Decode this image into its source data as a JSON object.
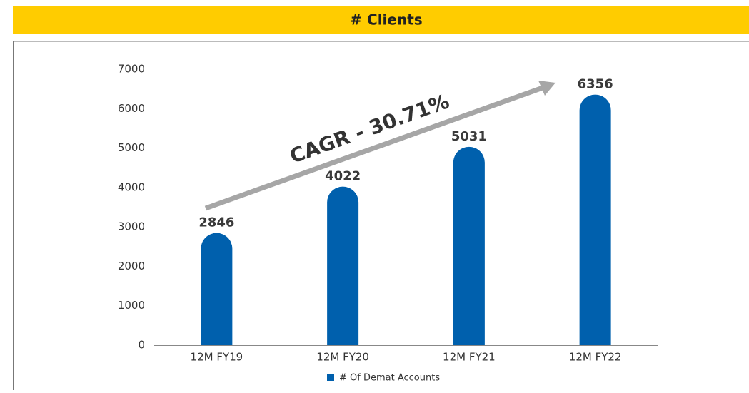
{
  "chart_data": {
    "type": "bar",
    "title": "# Clients",
    "categories": [
      "12M FY19",
      "12M FY20",
      "12M FY21",
      "12M FY22"
    ],
    "series": [
      {
        "name": "# Of Demat Accounts",
        "color": "#0060ad",
        "values": [
          2846,
          4022,
          5031,
          6356
        ]
      }
    ],
    "ylim": [
      0,
      7000
    ],
    "yticks": [
      0,
      1000,
      2000,
      3000,
      4000,
      5000,
      6000,
      7000
    ],
    "grid": false,
    "legend": "bottom",
    "annotation": "CAGR - 30.71%"
  }
}
